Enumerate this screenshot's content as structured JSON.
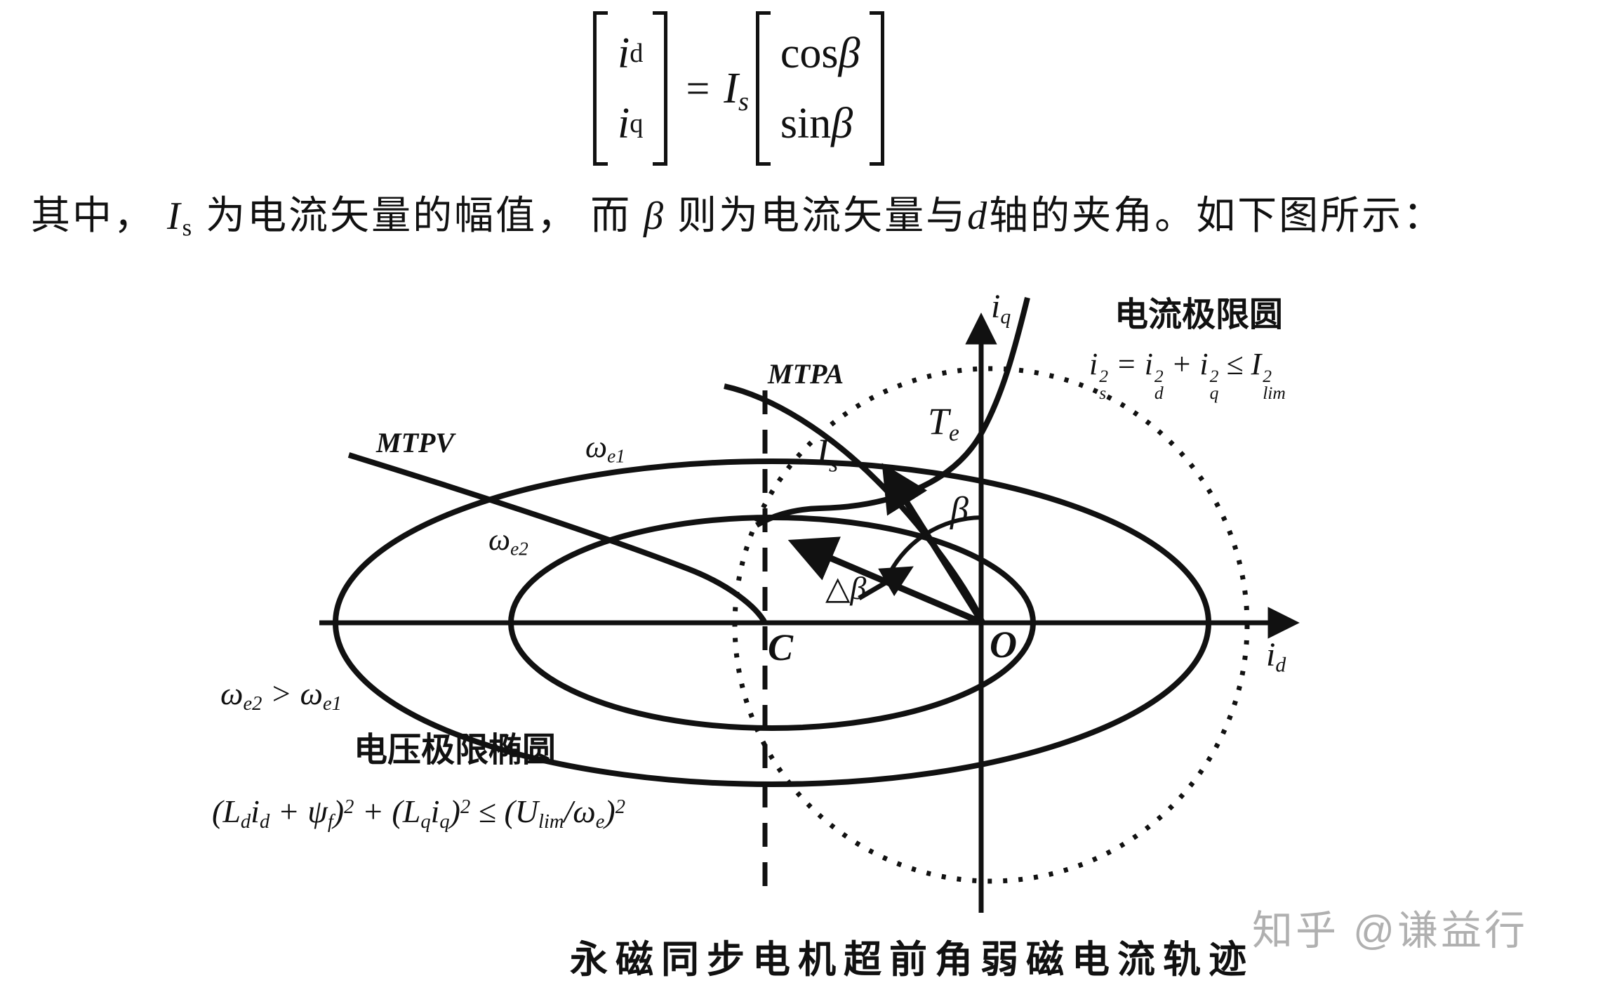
{
  "formula": {
    "matrix_left": {
      "row1": [
        {
          "t": "i",
          "v": "i"
        },
        {
          "t": "sub",
          "v": "d"
        }
      ],
      "row2": [
        {
          "t": "i",
          "v": "i"
        },
        {
          "t": "sub",
          "v": "q"
        }
      ]
    },
    "equals": "=",
    "coefficient": [
      {
        "t": "i",
        "v": "I"
      },
      {
        "t": "sub",
        "v": "s"
      }
    ],
    "matrix_right": {
      "row1": [
        {
          "t": "up",
          "v": "cos"
        },
        {
          "t": "i",
          "v": " β"
        }
      ],
      "row2": [
        {
          "t": "up",
          "v": "sin"
        },
        {
          "t": "i",
          "v": " β"
        }
      ]
    }
  },
  "paragraph": [
    "其中， ",
    {
      "t": "i",
      "v": "I"
    },
    {
      "t": "sub",
      "v": "s"
    },
    " 为电流矢量的幅值， 而 ",
    {
      "t": "i",
      "v": "β"
    },
    " 则为电流矢量与",
    {
      "t": "i",
      "v": "d"
    },
    "轴的夹角。如下图所示："
  ],
  "diagram": {
    "axis": {
      "iq": [
        {
          "t": "i",
          "v": "i"
        },
        {
          "t": "sub",
          "v": "q"
        }
      ],
      "id": [
        {
          "t": "i",
          "v": "i"
        },
        {
          "t": "sub",
          "v": "d"
        }
      ]
    },
    "current_limit": {
      "title": "电流极限圆",
      "equation": [
        "i",
        {
          "t": "stack",
          "sup": "2",
          "sub": "s"
        },
        " = i",
        {
          "t": "stack",
          "sup": "2",
          "sub": "d"
        },
        " + i",
        {
          "t": "stack",
          "sup": "2",
          "sub": "q"
        },
        " ≤ I",
        {
          "t": "stack",
          "sup": "2",
          "sub": "lim"
        }
      ]
    },
    "curves": {
      "mtpa": "MTPA",
      "mtpv": "MTPV",
      "te": [
        {
          "t": "i",
          "v": "T"
        },
        {
          "t": "sub",
          "v": "e"
        }
      ],
      "is": [
        {
          "t": "i",
          "v": "I"
        },
        {
          "t": "sub",
          "v": "s"
        }
      ]
    },
    "speeds": {
      "omega_e1": [
        {
          "t": "i",
          "v": "ω"
        },
        {
          "t": "sub",
          "v": "e1"
        }
      ],
      "omega_e2": [
        {
          "t": "i",
          "v": "ω"
        },
        {
          "t": "sub",
          "v": "e2"
        }
      ],
      "relation": [
        {
          "t": "i",
          "v": "ω"
        },
        {
          "t": "sub",
          "v": "e2"
        },
        " > ",
        {
          "t": "i",
          "v": "ω"
        },
        {
          "t": "sub",
          "v": "e1"
        }
      ]
    },
    "angles": {
      "beta": [
        {
          "t": "i",
          "v": "β"
        }
      ],
      "delta_beta": [
        {
          "t": "up",
          "v": "△"
        },
        {
          "t": "i",
          "v": "β"
        }
      ]
    },
    "points": {
      "c": "C",
      "o": "O"
    },
    "voltage_limit": {
      "title": "电压极限椭圆",
      "equation": [
        "(L",
        {
          "t": "sub",
          "v": "d"
        },
        "i",
        {
          "t": "sub",
          "v": "d"
        },
        " + ψ",
        {
          "t": "sub",
          "v": "f"
        },
        ")",
        {
          "t": "sup",
          "v": "2"
        },
        " + (L",
        {
          "t": "sub",
          "v": "q"
        },
        "i",
        {
          "t": "sub",
          "v": "q"
        },
        ")",
        {
          "t": "sup",
          "v": "2"
        },
        " ≤ (U",
        {
          "t": "sub",
          "v": "lim"
        },
        "/ω",
        {
          "t": "sub",
          "v": "e"
        },
        ")",
        {
          "t": "sup",
          "v": "2"
        }
      ]
    },
    "caption": "永磁同步电机超前角弱磁电流轨迹"
  },
  "watermark": "知乎 @谦益行",
  "colors": {
    "ink": "#111111",
    "watermark": "#b0b0b0",
    "background": "#ffffff"
  }
}
